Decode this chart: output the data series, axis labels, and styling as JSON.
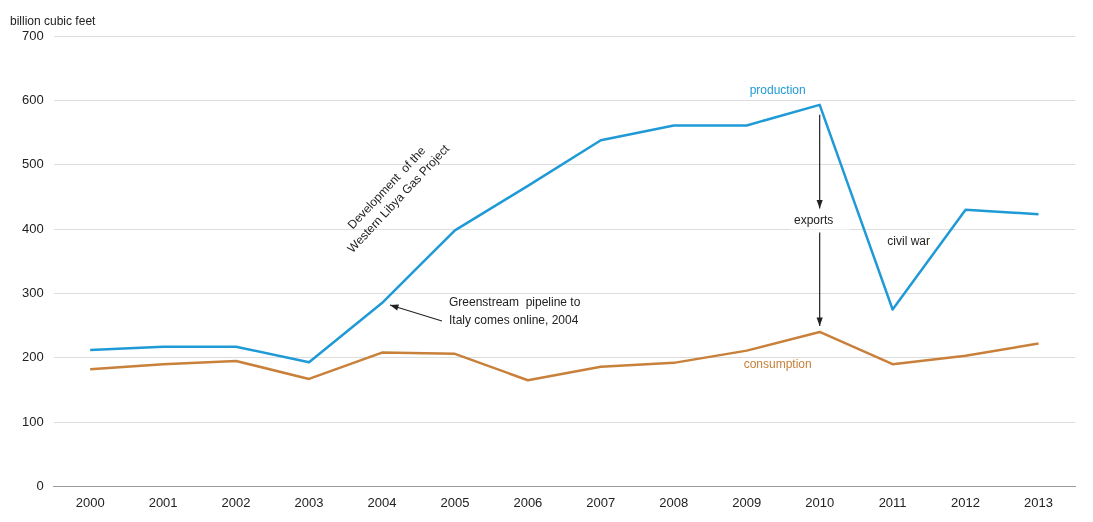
{
  "chart_data": {
    "type": "line",
    "ylabel": "billion cubic feet",
    "categories": [
      "2000",
      "2001",
      "2002",
      "2003",
      "2004",
      "2005",
      "2006",
      "2007",
      "2008",
      "2009",
      "2010",
      "2011",
      "2012",
      "2013"
    ],
    "series": [
      {
        "name": "production",
        "color": "#1f9ad6",
        "values": [
          212,
          217,
          217,
          193,
          285,
          398,
          467,
          538,
          561,
          561,
          593,
          275,
          430,
          423
        ]
      },
      {
        "name": "consumption",
        "color": "#c8803a",
        "values": [
          182,
          190,
          195,
          167,
          208,
          206,
          165,
          186,
          192,
          211,
          240,
          190,
          203,
          222
        ]
      }
    ],
    "ylim": [
      0,
      700
    ],
    "yticks": [
      0,
      100,
      200,
      300,
      400,
      500,
      600,
      700
    ],
    "grid": "y",
    "legend": false,
    "marker": "none",
    "line_style": "solid",
    "annotations": [
      "Development  of the\nWestern Libya Gas Project",
      {
        "text": "Greenstream  pipeline to\nItaly comes online, 2004",
        "x": "2004",
        "y": 285
      },
      "exports",
      "civil war"
    ]
  }
}
